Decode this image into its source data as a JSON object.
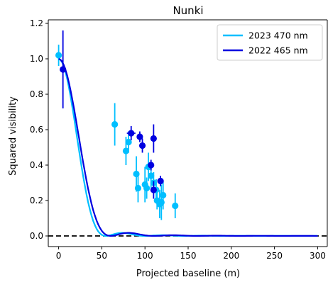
{
  "chart_data": {
    "type": "scatter",
    "title": "Nunki",
    "xlabel": "Projected baseline (m)",
    "ylabel": "Squared visibility",
    "xlim": [
      -12,
      312
    ],
    "ylim": [
      -0.06,
      1.22
    ],
    "xticks": [
      0,
      50,
      100,
      150,
      200,
      250,
      300
    ],
    "yticks": [
      0.0,
      0.2,
      0.4,
      0.6,
      0.8,
      1.0,
      1.2
    ],
    "grid": false,
    "legend_position": "top-right",
    "reference_line": {
      "y": 0.0,
      "style": "dashed",
      "color": "#000000"
    },
    "series": [
      {
        "name": "2023 470 nm",
        "color": "#00bfff",
        "model_theta_mas": 2.16,
        "model_wavelength_nm": 470,
        "points": [
          {
            "x": 0,
            "y": 1.02,
            "yerr": 0.06
          },
          {
            "x": 65,
            "y": 0.63,
            "yerr": 0.12
          },
          {
            "x": 78,
            "y": 0.48,
            "yerr": 0.08
          },
          {
            "x": 81,
            "y": 0.53,
            "yerr": 0.06
          },
          {
            "x": 90,
            "y": 0.35,
            "yerr": 0.1
          },
          {
            "x": 92,
            "y": 0.27,
            "yerr": 0.08
          },
          {
            "x": 100,
            "y": 0.29,
            "yerr": 0.1
          },
          {
            "x": 102,
            "y": 0.27,
            "yerr": 0.06
          },
          {
            "x": 104,
            "y": 0.39,
            "yerr": 0.08
          },
          {
            "x": 107,
            "y": 0.34,
            "yerr": 0.07
          },
          {
            "x": 110,
            "y": 0.3,
            "yerr": 0.06
          },
          {
            "x": 113,
            "y": 0.26,
            "yerr": 0.06
          },
          {
            "x": 114,
            "y": 0.2,
            "yerr": 0.05
          },
          {
            "x": 117,
            "y": 0.18,
            "yerr": 0.08
          },
          {
            "x": 119,
            "y": 0.19,
            "yerr": 0.1
          },
          {
            "x": 121,
            "y": 0.23,
            "yerr": 0.08
          },
          {
            "x": 135,
            "y": 0.17,
            "yerr": 0.07
          }
        ]
      },
      {
        "name": "2022 465 nm",
        "color": "#0000e0",
        "model_theta_mas": 1.94,
        "model_wavelength_nm": 465,
        "points": [
          {
            "x": 5,
            "y": 0.94,
            "yerr": 0.22,
            "xerr": 0
          },
          {
            "x": 84,
            "y": 0.58,
            "yerr": 0.04,
            "xerr": 5
          },
          {
            "x": 94,
            "y": 0.56,
            "yerr": 0.03,
            "xerr": 3
          },
          {
            "x": 97,
            "y": 0.51,
            "yerr": 0.04,
            "xerr": 3
          },
          {
            "x": 107,
            "y": 0.4,
            "yerr": 0.03,
            "xerr": 3
          },
          {
            "x": 110,
            "y": 0.55,
            "yerr": 0.08,
            "xerr": 0
          },
          {
            "x": 110,
            "y": 0.26,
            "yerr": 0.05,
            "xerr": 0
          },
          {
            "x": 118,
            "y": 0.31,
            "yerr": 0.03,
            "xerr": 3
          }
        ]
      }
    ]
  }
}
